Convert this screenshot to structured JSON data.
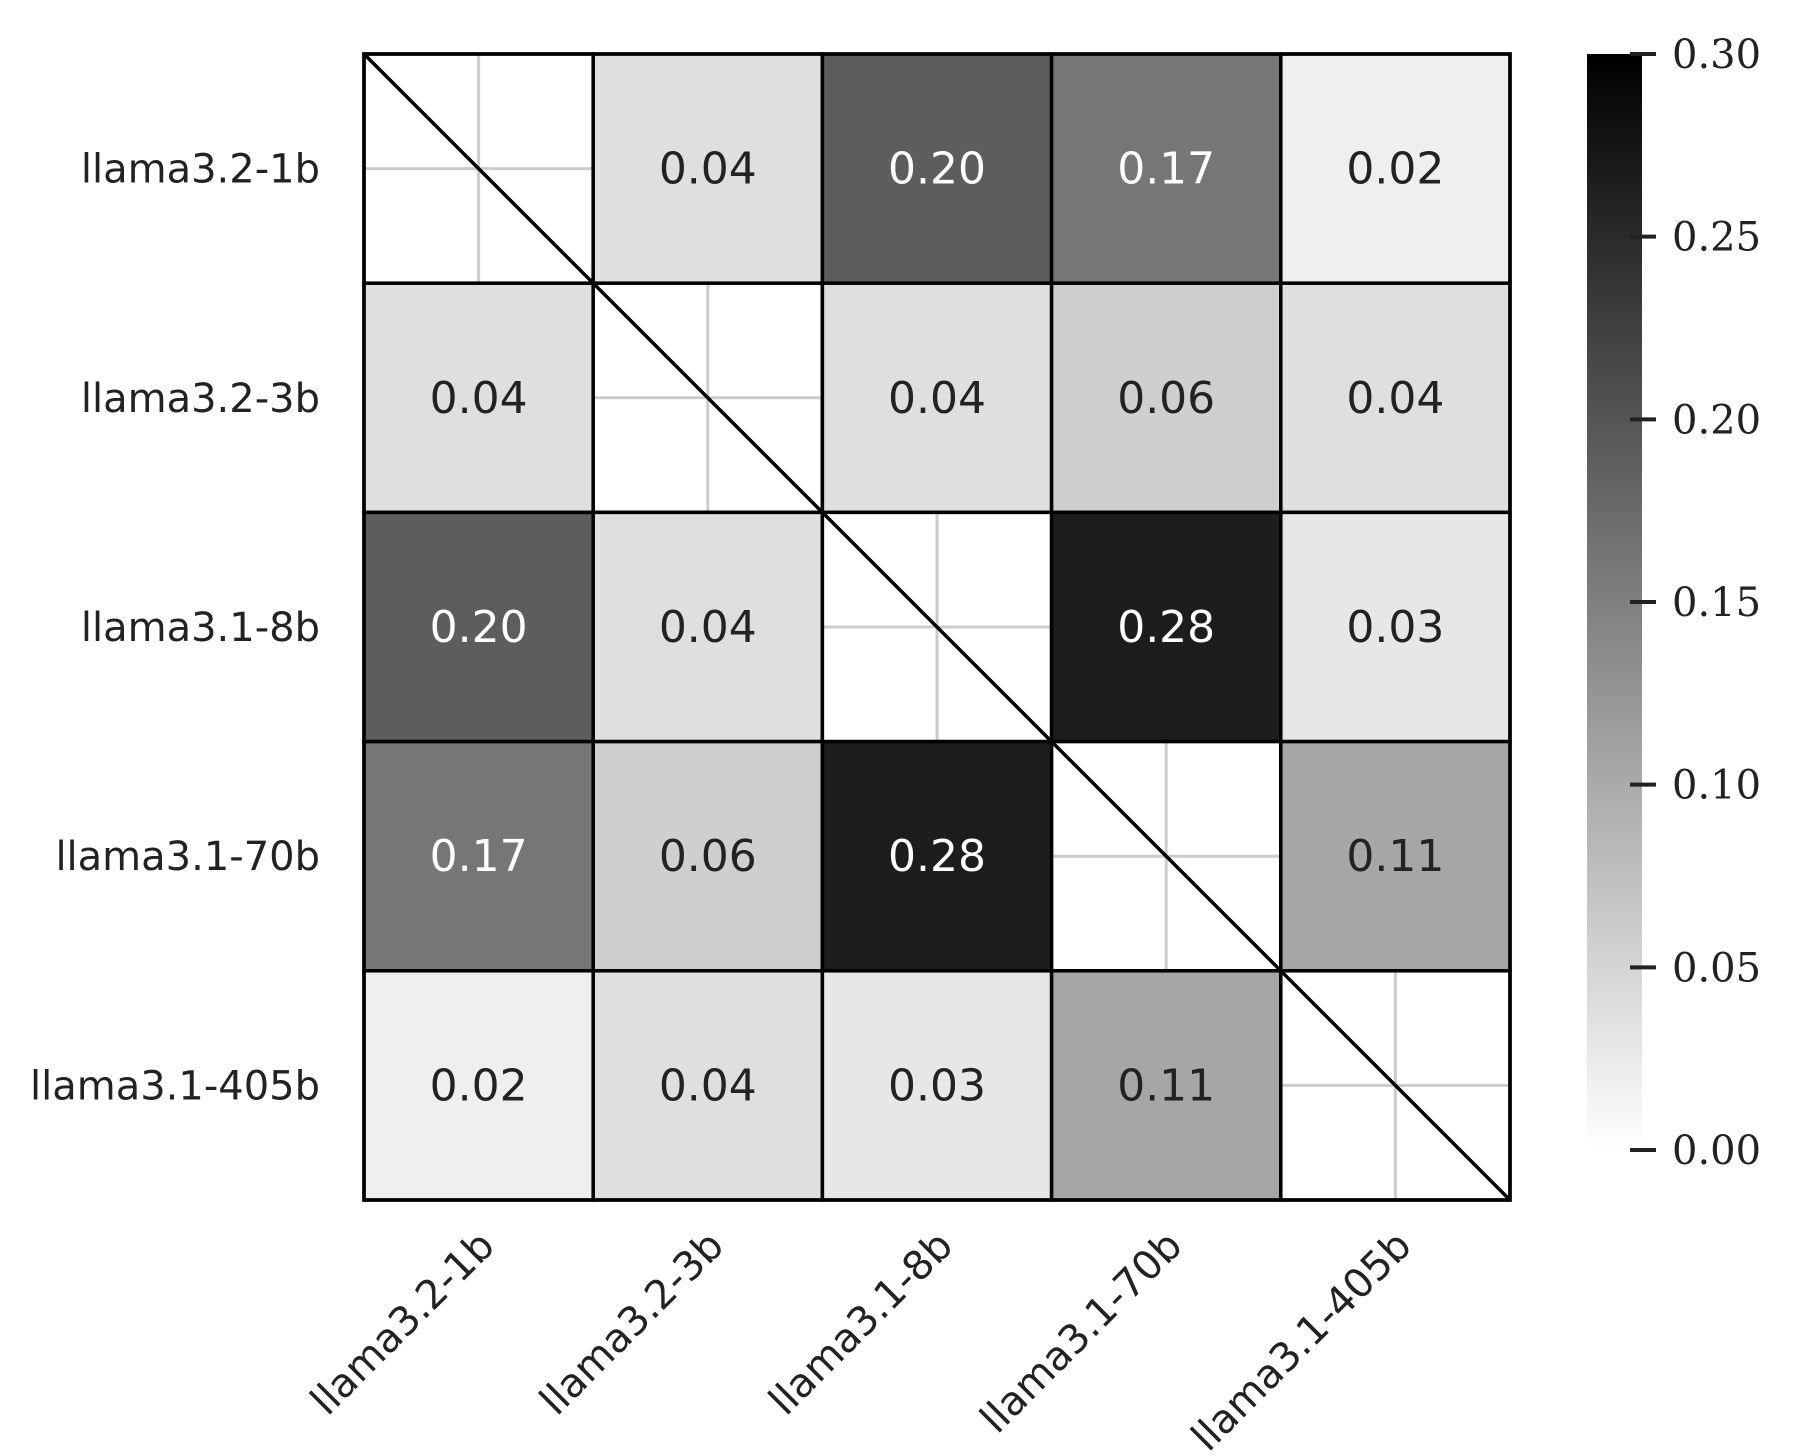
{
  "chart_data": {
    "type": "heatmap",
    "title": "",
    "xlabel": "",
    "ylabel": "",
    "labels": [
      "llama3.2-1b",
      "llama3.2-3b",
      "llama3.1-8b",
      "llama3.1-70b",
      "llama3.1-405b"
    ],
    "matrix": [
      [
        null,
        0.04,
        0.2,
        0.17,
        0.02
      ],
      [
        0.04,
        null,
        0.04,
        0.06,
        0.04
      ],
      [
        0.2,
        0.04,
        null,
        0.28,
        0.03
      ],
      [
        0.17,
        0.06,
        0.28,
        null,
        0.11
      ],
      [
        0.02,
        0.04,
        0.03,
        0.11,
        null
      ]
    ],
    "cell_labels": [
      [
        "",
        "0.04",
        "0.20",
        "0.17",
        "0.02"
      ],
      [
        "0.04",
        "",
        "0.04",
        "0.06",
        "0.04"
      ],
      [
        "0.20",
        "0.04",
        "",
        "0.28",
        "0.03"
      ],
      [
        "0.17",
        "0.06",
        "0.28",
        "",
        "0.11"
      ],
      [
        "0.02",
        "0.04",
        "0.03",
        "0.11",
        ""
      ]
    ],
    "diagonal": "masked (blank with diagonal line)",
    "colormap": "greys",
    "colorbar": {
      "range": [
        0.0,
        0.3
      ],
      "ticks": [
        0.0,
        0.05,
        0.1,
        0.15,
        0.2,
        0.25,
        0.3
      ],
      "tick_labels": [
        "0.00",
        "0.05",
        "0.10",
        "0.15",
        "0.20",
        "0.25",
        "0.30"
      ]
    }
  },
  "colors": {
    "low": "#ffffff",
    "high": "#000000",
    "grid": "#cccccc",
    "border": "#000000",
    "text_dark": "#222222",
    "text_light": "#ffffff"
  }
}
